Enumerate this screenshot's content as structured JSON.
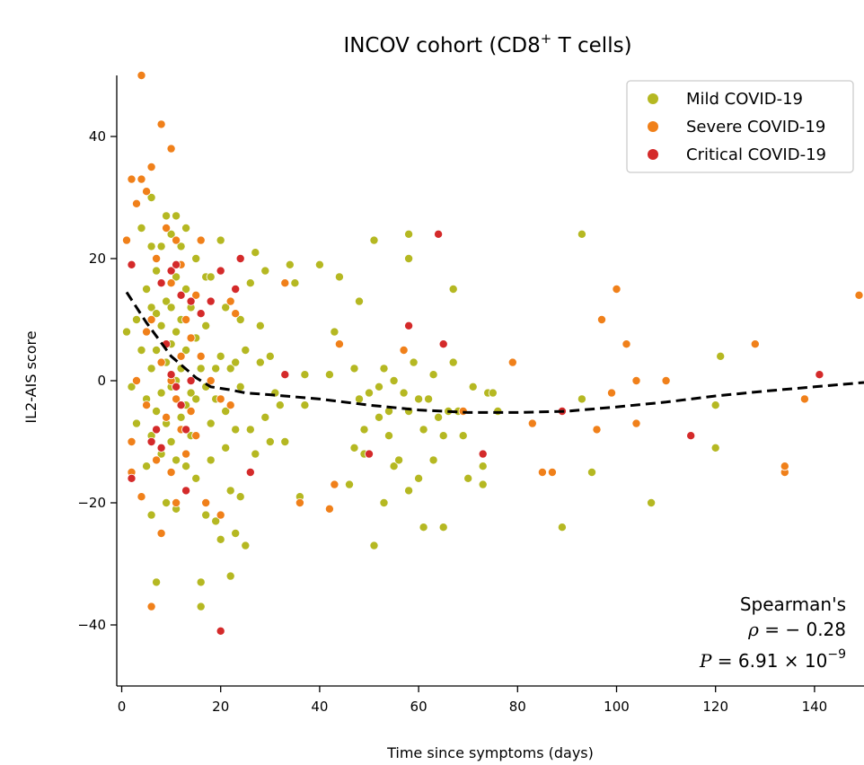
{
  "chart_data": {
    "type": "scatter",
    "title": "INCOV cohort (CD8",
    "title_sup": "+",
    "title_suffix": " T cells)",
    "xlabel": "Time since symptoms (days)",
    "ylabel": "IL2-AIS score",
    "xlim": [
      -1,
      150
    ],
    "ylim": [
      -50,
      50
    ],
    "xticks": [
      0,
      20,
      40,
      60,
      80,
      100,
      120,
      140
    ],
    "yticks": [
      -40,
      -20,
      0,
      20,
      40
    ],
    "legend_position": "top-right",
    "series": [
      {
        "name": "Mild COVID-19",
        "color": "#b5b822",
        "points": [
          [
            1,
            8
          ],
          [
            2,
            -1
          ],
          [
            3,
            10
          ],
          [
            3,
            -7
          ],
          [
            4,
            25
          ],
          [
            4,
            5
          ],
          [
            5,
            15
          ],
          [
            5,
            -3
          ],
          [
            5,
            -14
          ],
          [
            6,
            30
          ],
          [
            6,
            22
          ],
          [
            6,
            12
          ],
          [
            6,
            2
          ],
          [
            6,
            -9
          ],
          [
            6,
            -22
          ],
          [
            7,
            -33
          ],
          [
            7,
            18
          ],
          [
            7,
            11
          ],
          [
            7,
            5
          ],
          [
            7,
            -5
          ],
          [
            8,
            22
          ],
          [
            8,
            9
          ],
          [
            8,
            -2
          ],
          [
            8,
            -12
          ],
          [
            9,
            27
          ],
          [
            9,
            13
          ],
          [
            9,
            3
          ],
          [
            9,
            -7
          ],
          [
            9,
            -20
          ],
          [
            10,
            24
          ],
          [
            10,
            12
          ],
          [
            10,
            6
          ],
          [
            10,
            -1
          ],
          [
            10,
            -10
          ],
          [
            11,
            27
          ],
          [
            11,
            17
          ],
          [
            11,
            8
          ],
          [
            11,
            0
          ],
          [
            11,
            -13
          ],
          [
            11,
            -21
          ],
          [
            12,
            22
          ],
          [
            12,
            10
          ],
          [
            12,
            2
          ],
          [
            12,
            -6
          ],
          [
            13,
            25
          ],
          [
            13,
            15
          ],
          [
            13,
            5
          ],
          [
            13,
            -4
          ],
          [
            13,
            -14
          ],
          [
            14,
            12
          ],
          [
            14,
            -2
          ],
          [
            14,
            -9
          ],
          [
            15,
            20
          ],
          [
            15,
            7
          ],
          [
            15,
            -3
          ],
          [
            15,
            -16
          ],
          [
            16,
            -33
          ],
          [
            16,
            -37
          ],
          [
            16,
            2
          ],
          [
            17,
            17
          ],
          [
            17,
            9
          ],
          [
            17,
            -1
          ],
          [
            17,
            -22
          ],
          [
            18,
            17
          ],
          [
            18,
            -7
          ],
          [
            18,
            -13
          ],
          [
            19,
            2
          ],
          [
            19,
            -3
          ],
          [
            19,
            -23
          ],
          [
            20,
            23
          ],
          [
            20,
            4
          ],
          [
            20,
            -26
          ],
          [
            21,
            12
          ],
          [
            21,
            -5
          ],
          [
            21,
            -11
          ],
          [
            22,
            2
          ],
          [
            22,
            -18
          ],
          [
            22,
            -32
          ],
          [
            23,
            -25
          ],
          [
            23,
            -8
          ],
          [
            23,
            3
          ],
          [
            24,
            10
          ],
          [
            24,
            -1
          ],
          [
            24,
            -19
          ],
          [
            25,
            -27
          ],
          [
            25,
            5
          ],
          [
            26,
            16
          ],
          [
            26,
            -8
          ],
          [
            27,
            21
          ],
          [
            27,
            -12
          ],
          [
            28,
            9
          ],
          [
            28,
            3
          ],
          [
            29,
            -6
          ],
          [
            29,
            18
          ],
          [
            30,
            4
          ],
          [
            30,
            -10
          ],
          [
            31,
            -2
          ],
          [
            32,
            -4
          ],
          [
            33,
            -10
          ],
          [
            34,
            19
          ],
          [
            35,
            16
          ],
          [
            36,
            -19
          ],
          [
            37,
            -4
          ],
          [
            37,
            1
          ],
          [
            40,
            19
          ],
          [
            42,
            1
          ],
          [
            43,
            8
          ],
          [
            44,
            17
          ],
          [
            46,
            -17
          ],
          [
            47,
            -11
          ],
          [
            47,
            2
          ],
          [
            48,
            -3
          ],
          [
            48,
            13
          ],
          [
            49,
            -8
          ],
          [
            49,
            -12
          ],
          [
            50,
            -2
          ],
          [
            51,
            23
          ],
          [
            51,
            -27
          ],
          [
            52,
            -6
          ],
          [
            52,
            -1
          ],
          [
            53,
            -20
          ],
          [
            53,
            2
          ],
          [
            54,
            -5
          ],
          [
            54,
            -9
          ],
          [
            55,
            -14
          ],
          [
            55,
            0
          ],
          [
            56,
            -13
          ],
          [
            57,
            -2
          ],
          [
            58,
            24
          ],
          [
            58,
            20
          ],
          [
            58,
            -5
          ],
          [
            58,
            -18
          ],
          [
            59,
            3
          ],
          [
            60,
            -16
          ],
          [
            60,
            -3
          ],
          [
            61,
            -24
          ],
          [
            61,
            -8
          ],
          [
            62,
            -3
          ],
          [
            63,
            1
          ],
          [
            63,
            -13
          ],
          [
            64,
            -6
          ],
          [
            65,
            -9
          ],
          [
            65,
            -24
          ],
          [
            66,
            -5
          ],
          [
            67,
            15
          ],
          [
            67,
            3
          ],
          [
            68,
            -5
          ],
          [
            69,
            -9
          ],
          [
            70,
            -16
          ],
          [
            71,
            -1
          ],
          [
            73,
            -17
          ],
          [
            73,
            -14
          ],
          [
            74,
            -2
          ],
          [
            75,
            -2
          ],
          [
            76,
            -5
          ],
          [
            89,
            -24
          ],
          [
            93,
            -3
          ],
          [
            93,
            24
          ],
          [
            95,
            -15
          ],
          [
            107,
            -20
          ],
          [
            120,
            -11
          ],
          [
            120,
            -4
          ],
          [
            121,
            4
          ]
        ]
      },
      {
        "name": "Severe COVID-19",
        "color": "#f0801a",
        "points": [
          [
            1,
            23
          ],
          [
            2,
            33
          ],
          [
            2,
            -10
          ],
          [
            2,
            -15
          ],
          [
            3,
            0
          ],
          [
            3,
            29
          ],
          [
            4,
            50
          ],
          [
            4,
            33
          ],
          [
            4,
            -19
          ],
          [
            5,
            31
          ],
          [
            5,
            8
          ],
          [
            5,
            -4
          ],
          [
            6,
            35
          ],
          [
            6,
            -37
          ],
          [
            6,
            10
          ],
          [
            7,
            -13
          ],
          [
            7,
            20
          ],
          [
            8,
            42
          ],
          [
            8,
            -25
          ],
          [
            8,
            3
          ],
          [
            9,
            25
          ],
          [
            9,
            -6
          ],
          [
            10,
            38
          ],
          [
            10,
            0
          ],
          [
            10,
            16
          ],
          [
            10,
            -15
          ],
          [
            11,
            23
          ],
          [
            11,
            -3
          ],
          [
            11,
            -20
          ],
          [
            12,
            19
          ],
          [
            12,
            4
          ],
          [
            12,
            -8
          ],
          [
            13,
            10
          ],
          [
            13,
            -12
          ],
          [
            14,
            7
          ],
          [
            14,
            -5
          ],
          [
            15,
            14
          ],
          [
            15,
            -9
          ],
          [
            16,
            23
          ],
          [
            16,
            4
          ],
          [
            17,
            -20
          ],
          [
            18,
            0
          ],
          [
            20,
            -3
          ],
          [
            20,
            -22
          ],
          [
            22,
            13
          ],
          [
            22,
            -4
          ],
          [
            23,
            11
          ],
          [
            33,
            16
          ],
          [
            36,
            -20
          ],
          [
            42,
            -21
          ],
          [
            43,
            -17
          ],
          [
            44,
            6
          ],
          [
            57,
            5
          ],
          [
            69,
            -5
          ],
          [
            79,
            3
          ],
          [
            83,
            -7
          ],
          [
            85,
            -15
          ],
          [
            87,
            -15
          ],
          [
            96,
            -8
          ],
          [
            97,
            10
          ],
          [
            99,
            -2
          ],
          [
            100,
            15
          ],
          [
            102,
            6
          ],
          [
            104,
            0
          ],
          [
            104,
            -7
          ],
          [
            110,
            0
          ],
          [
            128,
            6
          ],
          [
            134,
            -15
          ],
          [
            134,
            -14
          ],
          [
            138,
            -3
          ],
          [
            149,
            14
          ]
        ]
      },
      {
        "name": "Critical COVID-19",
        "color": "#d42a2a",
        "points": [
          [
            2,
            19
          ],
          [
            2,
            -16
          ],
          [
            6,
            -10
          ],
          [
            7,
            -8
          ],
          [
            8,
            16
          ],
          [
            8,
            -11
          ],
          [
            9,
            6
          ],
          [
            10,
            18
          ],
          [
            10,
            1
          ],
          [
            11,
            19
          ],
          [
            11,
            -1
          ],
          [
            12,
            14
          ],
          [
            12,
            -4
          ],
          [
            13,
            -18
          ],
          [
            13,
            -8
          ],
          [
            14,
            13
          ],
          [
            14,
            0
          ],
          [
            16,
            11
          ],
          [
            18,
            13
          ],
          [
            20,
            18
          ],
          [
            20,
            -41
          ],
          [
            23,
            15
          ],
          [
            24,
            20
          ],
          [
            26,
            -15
          ],
          [
            33,
            1
          ],
          [
            50,
            -12
          ],
          [
            58,
            9
          ],
          [
            64,
            24
          ],
          [
            65,
            6
          ],
          [
            73,
            -12
          ],
          [
            89,
            -5
          ],
          [
            115,
            -9
          ],
          [
            141,
            1
          ]
        ]
      }
    ],
    "trend_line": {
      "style": "dashed",
      "color": "#000000",
      "x": [
        1,
        5,
        10,
        15,
        18,
        22,
        25,
        30,
        40,
        50,
        60,
        70,
        80,
        90,
        100,
        110,
        120,
        130,
        140,
        150
      ],
      "y": [
        14.5,
        9.5,
        4,
        0.5,
        -1,
        -1.5,
        -2,
        -2.3,
        -3,
        -4,
        -4.8,
        -5.2,
        -5.2,
        -5,
        -4.3,
        -3.5,
        -2.5,
        -1.7,
        -1,
        -0.3
      ]
    },
    "annotation": {
      "line1": "Spearman's",
      "rho_symbol": "ρ",
      "rho_value": " = − 0.28",
      "p_symbol": "P",
      "p_value": " = 6.91 × 10",
      "p_exponent": "−9"
    }
  }
}
